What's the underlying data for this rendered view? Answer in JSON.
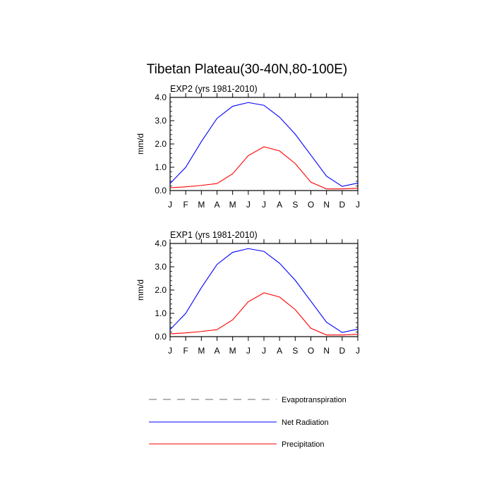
{
  "chart_data": {
    "type": "line",
    "title": "Tibetan Plateau(30-40N,80-100E)",
    "x": [
      "J",
      "F",
      "M",
      "A",
      "M",
      "J",
      "J",
      "A",
      "S",
      "O",
      "N",
      "D",
      "J"
    ],
    "ylabel": "mm/d",
    "ylim": [
      0,
      4.0
    ],
    "yticks": [
      "0.0",
      "1.0",
      "2.0",
      "3.0",
      "4.0"
    ],
    "legend": {
      "placement": "bottom",
      "entries": [
        {
          "name": "Evapotranspiration",
          "color": "#888888",
          "dash": "dashed"
        },
        {
          "name": "Net Radiation",
          "color": "#0000ff",
          "dash": "solid"
        },
        {
          "name": "Precipitation",
          "color": "#ff0000",
          "dash": "solid"
        }
      ]
    },
    "panels": [
      {
        "subtitle": "EXP2 (yrs 1981-2010)",
        "series": [
          {
            "name": "Net Radiation",
            "color": "#0000ff",
            "values": [
              0.3,
              1.0,
              2.1,
              3.1,
              3.62,
              3.78,
              3.66,
              3.15,
              2.42,
              1.52,
              0.62,
              0.18,
              0.32
            ]
          },
          {
            "name": "Precipitation",
            "color": "#ff0000",
            "values": [
              0.12,
              0.16,
              0.22,
              0.3,
              0.72,
              1.5,
              1.88,
              1.7,
              1.16,
              0.36,
              0.07,
              0.07,
              0.1
            ]
          }
        ]
      },
      {
        "subtitle": "EXP1 (yrs 1981-2010)",
        "series": [
          {
            "name": "Net Radiation",
            "color": "#0000ff",
            "values": [
              0.3,
              1.0,
              2.1,
              3.1,
              3.62,
              3.78,
              3.66,
              3.15,
              2.42,
              1.52,
              0.62,
              0.18,
              0.32
            ]
          },
          {
            "name": "Precipitation",
            "color": "#ff0000",
            "values": [
              0.12,
              0.16,
              0.22,
              0.3,
              0.72,
              1.5,
              1.88,
              1.7,
              1.16,
              0.36,
              0.07,
              0.07,
              0.1
            ]
          }
        ]
      }
    ]
  }
}
